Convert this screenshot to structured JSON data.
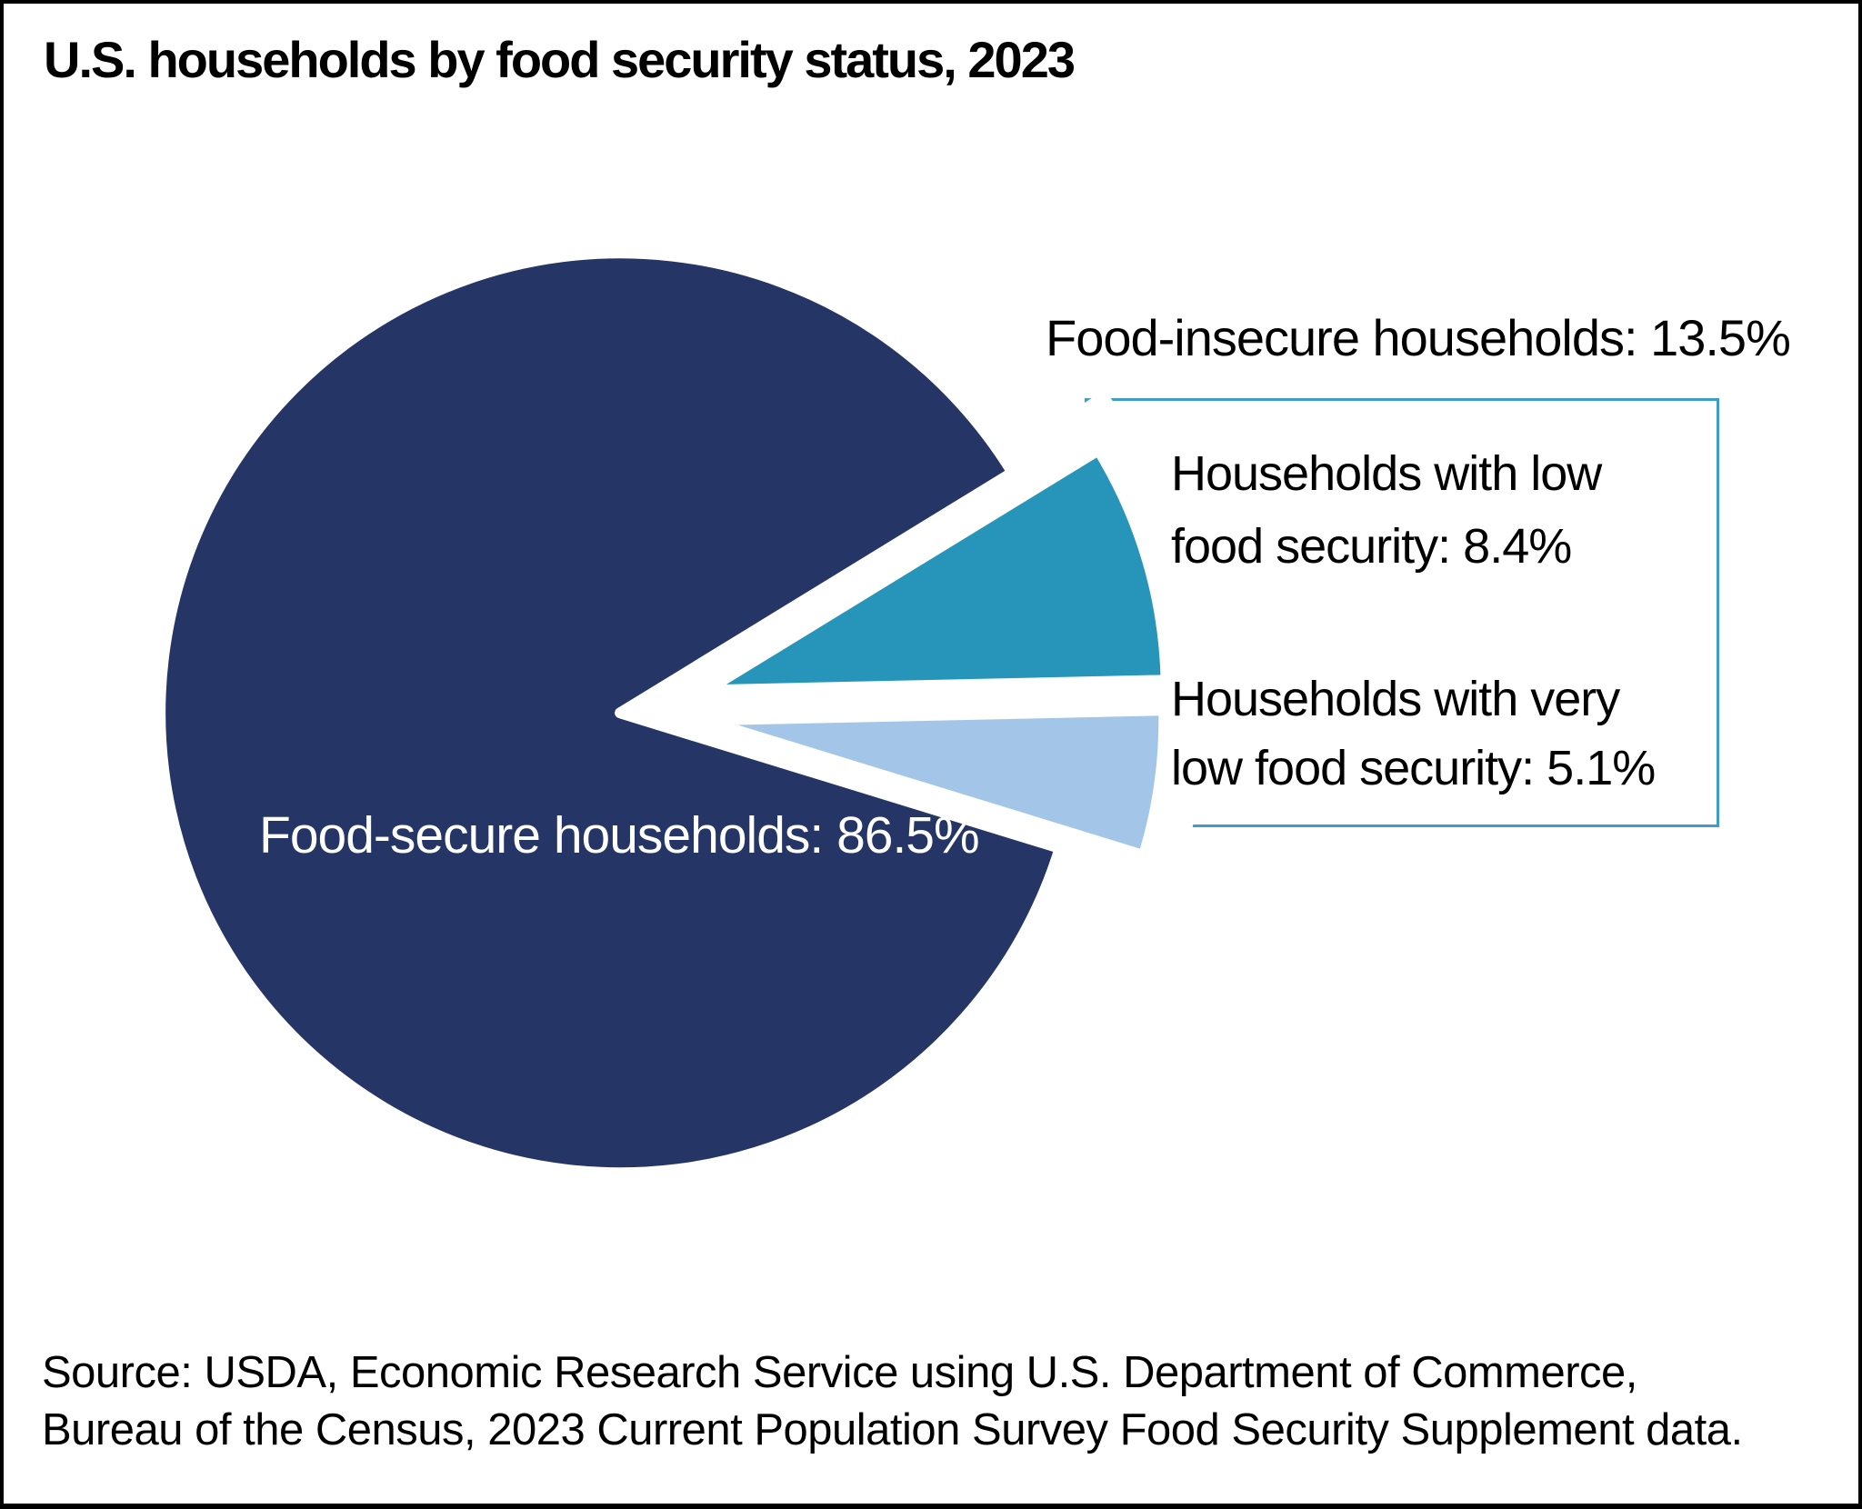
{
  "title": "U.S. households by food security status, 2023",
  "chart_data": {
    "type": "pie",
    "title": "U.S. households by food security status, 2023",
    "units": "percent of U.S. households",
    "slices": [
      {
        "label": "Households with low food security",
        "value": 8.4,
        "color": "#2795b9"
      },
      {
        "label": "Households with very low food security",
        "value": 5.1,
        "color": "#a3c6e8"
      },
      {
        "label": "Food-secure households",
        "value": 86.5,
        "color": "#253566"
      }
    ],
    "annotation_group": {
      "label": "Food-insecure households",
      "value": 13.5
    },
    "start_angle_deg": -31.5,
    "legend_position": "callout-box-right",
    "exploded": true
  },
  "annotations": {
    "food_insecure": "Food-insecure households: 13.5%",
    "low_line1": "Households with low",
    "low_line2": "food security: 8.4%",
    "very_low_line1": "Households with very",
    "very_low_line2": "low food security: 5.1%",
    "food_secure": "Food-secure households: 86.5%"
  },
  "source": {
    "line1": "Source: USDA, Economic Research Service using U.S. Department of Commerce,",
    "line2": "Bureau of the Census, 2023 Current Population Survey Food Security Supplement data."
  },
  "colors": {
    "background": "#ffffff",
    "page_border": "#000000",
    "callout_border": "#3e9cc9",
    "slice_separator": "#ffffff",
    "navy": "#253566",
    "teal": "#2795b9",
    "light_blue": "#a3c6e8",
    "text": "#000000",
    "pie_inner_label_text": "#ffffff"
  }
}
